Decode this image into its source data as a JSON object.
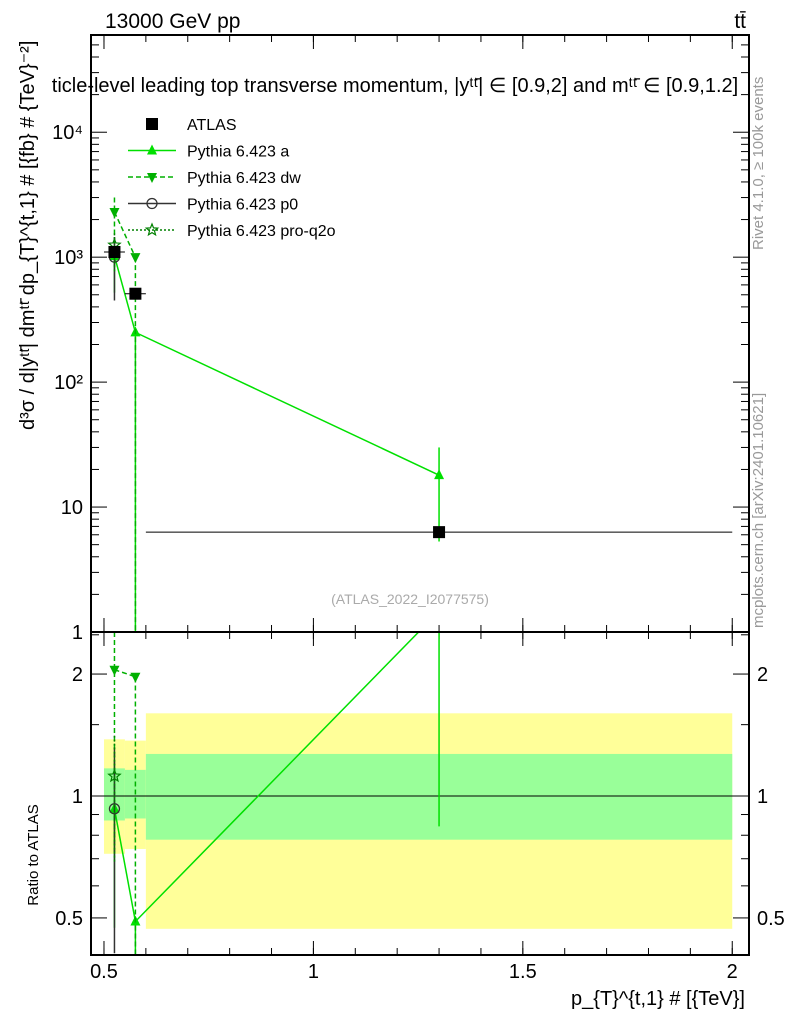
{
  "chart_data": {
    "type": "line",
    "header_left": "13000 GeV pp",
    "header_right": "tt̄",
    "title": "ticle-level leading top transverse momentum, |yᵗᵗ̄| ∈ [0.9,2] and mᵗᵗ̄ ∈ [0.9,1.2]",
    "ylabel": "d³σ / d|yᵗᵗ̄| dmᵗᵗ̄ dp_{T}^{t,1} # [{fb} # {TeV}⁻²]",
    "ratio_ylabel": "Ratio to ATLAS",
    "xlabel": "p_{T}^{t,1} # [{TeV}]",
    "side_label_top": "Rivet 4.1.0, ≥ 100k events",
    "side_label_bottom": "mcplots.cern.ch [arXiv:2401.10621]",
    "analysis_label": "(ATLAS_2022_I2077575)",
    "xlim": [
      0.469,
      2.04
    ],
    "ylim": [
      1,
      60000
    ],
    "ratio_ylim": [
      0.405,
      2.54
    ],
    "y_scale": "log",
    "legend_position": "top-left",
    "x_ticks": [
      {
        "v": 0.5,
        "l": "0.5"
      },
      {
        "v": 1,
        "l": "1"
      },
      {
        "v": 1.5,
        "l": "1.5"
      },
      {
        "v": 2,
        "l": "2"
      }
    ],
    "y_ticks": [
      {
        "v": 1,
        "l": "1"
      },
      {
        "v": 10,
        "l": "10"
      },
      {
        "v": 100,
        "l": "10²"
      },
      {
        "v": 1000,
        "l": "10³"
      },
      {
        "v": 10000,
        "l": "10⁴"
      }
    ],
    "ratio_ticks": [
      {
        "v": 0.5,
        "l": "0.5"
      },
      {
        "v": 1,
        "l": "1"
      },
      {
        "v": 2,
        "l": "2"
      }
    ],
    "data": {
      "name": "ATLAS",
      "x": [
        0.525,
        0.575,
        1.3
      ],
      "xerr": [
        0.025,
        0.025,
        0.7
      ],
      "y": [
        1100,
        510,
        6.3
      ],
      "band_inner": [
        [
          0.87,
          1.17
        ],
        [
          0.88,
          1.16
        ],
        [
          0.78,
          1.27
        ]
      ],
      "band_outer": [
        [
          0.72,
          1.38
        ],
        [
          0.74,
          1.37
        ],
        [
          0.47,
          1.6
        ]
      ]
    },
    "series": [
      {
        "name": "Pythia 6.423 a",
        "color": "#00e000",
        "dash": "",
        "marker": "triangle",
        "x": [
          0.525,
          0.575,
          1.3
        ],
        "y": [
          1020,
          250,
          18
        ],
        "yerr_lo": [
          500,
          250,
          12.7
        ],
        "yerr_hi": [
          300,
          0,
          12
        ],
        "ratio": [
          0.93,
          0.49,
          2.86
        ]
      },
      {
        "name": "Pythia 6.423 dw",
        "color": "#00b000",
        "dash": "5,3",
        "marker": "triangle-down",
        "x": [
          0.525,
          0.575
        ],
        "y": [
          2300,
          1000
        ],
        "yerr_lo": [
          1500,
          1000
        ],
        "yerr_hi": [
          700,
          0
        ],
        "ratio": [
          2.05,
          1.97
        ]
      },
      {
        "name": "Pythia 6.423 p0",
        "color": "#333333",
        "dash": "",
        "marker": "circle",
        "x": [
          0.525
        ],
        "y": [
          1000
        ],
        "yerr_lo": [
          550
        ],
        "yerr_hi": [
          450
        ],
        "ratio": [
          0.93
        ]
      },
      {
        "name": "Pythia 6.423 pro-q2o",
        "color": "#008000",
        "dash": "2,2",
        "marker": "star",
        "x": [
          0.525
        ],
        "y": [
          1250
        ],
        "yerr_lo": [
          500
        ],
        "yerr_hi": [
          300
        ],
        "ratio": [
          1.12
        ]
      }
    ]
  }
}
